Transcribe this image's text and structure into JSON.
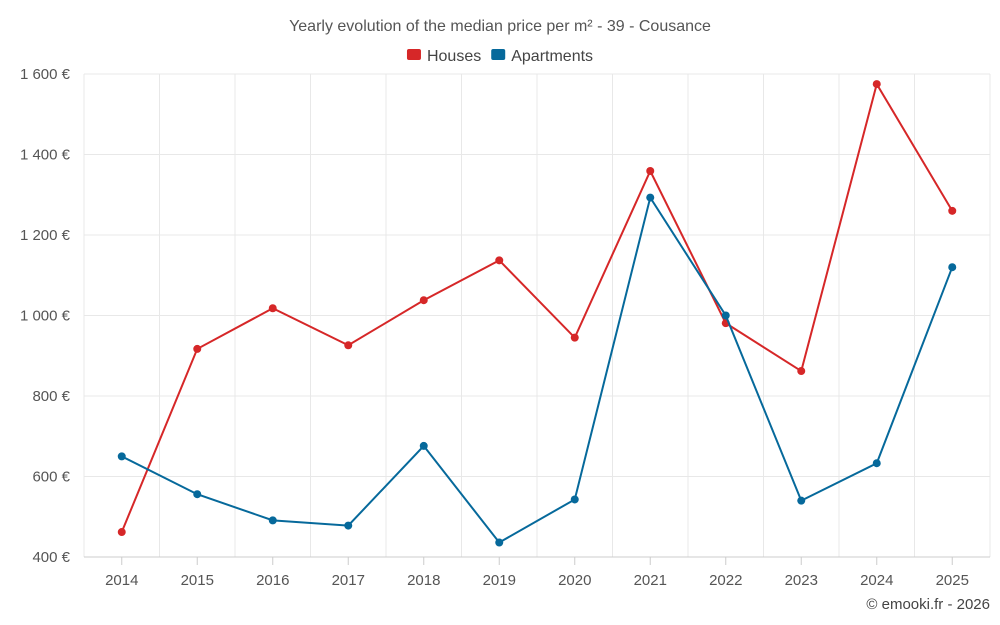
{
  "chart_data": {
    "type": "line",
    "title": "Yearly evolution of the median price per m² - 39 - Cousance",
    "categories": [
      "2014",
      "2015",
      "2016",
      "2017",
      "2018",
      "2019",
      "2020",
      "2021",
      "2022",
      "2023",
      "2024",
      "2025"
    ],
    "series": [
      {
        "name": "Houses",
        "color": "#d62728",
        "values": [
          462,
          917,
          1018,
          926,
          1038,
          1137,
          945,
          1359,
          981,
          862,
          1575,
          1260
        ]
      },
      {
        "name": "Apartments",
        "color": "#06699b",
        "values": [
          650,
          556,
          491,
          478,
          676,
          436,
          543,
          1293,
          1000,
          540,
          633,
          1120
        ]
      }
    ],
    "ylim": [
      400,
      1600
    ],
    "yticks": [
      400,
      600,
      800,
      1000,
      1200,
      1400,
      1600
    ],
    "ytick_labels": [
      "400 €",
      "600 €",
      "800 €",
      "1 000 €",
      "1 200 €",
      "1 400 €",
      "1 600 €"
    ],
    "xlabel": "",
    "ylabel": "",
    "grid": true,
    "legend_position": "top-center"
  },
  "credit": "© emooki.fr - 2026"
}
